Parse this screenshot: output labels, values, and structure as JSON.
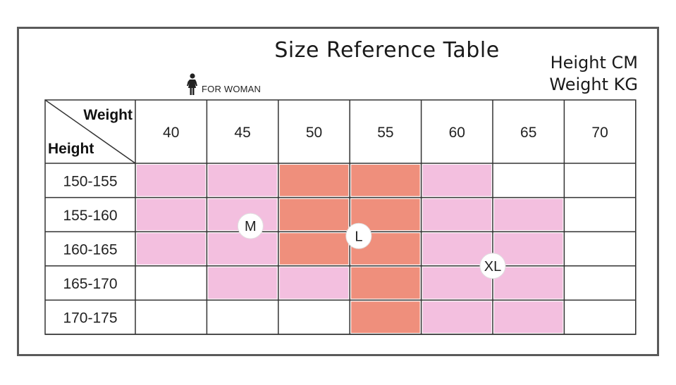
{
  "header": {
    "title": "Size Reference Table",
    "units_height": "Height CM",
    "units_weight": "Weight KG",
    "subtitle": "FOR WOMAN",
    "subtitle_icon": "woman-icon"
  },
  "chart_data": {
    "type": "table",
    "corner_top": "Weight",
    "corner_bottom": "Height",
    "columns": [
      "40",
      "45",
      "50",
      "55",
      "60",
      "65",
      "70"
    ],
    "rows": [
      "150-155",
      "155-160",
      "160-165",
      "165-170",
      "170-175"
    ],
    "cells": [
      [
        "M",
        "M",
        "L",
        "L",
        "M",
        "",
        ""
      ],
      [
        "M",
        "M",
        "L",
        "L",
        "XL",
        "XL",
        ""
      ],
      [
        "M",
        "M",
        "L",
        "L",
        "XL",
        "XL",
        ""
      ],
      [
        "",
        "M",
        "M",
        "L",
        "XL",
        "XL",
        ""
      ],
      [
        "",
        "",
        "",
        "L",
        "XL",
        "XL",
        ""
      ]
    ],
    "size_labels": [
      "M",
      "L",
      "XL"
    ],
    "colors": {
      "M": "#f3bfdf",
      "L": "#ef8f7c",
      "XL": "#f3bfdf",
      "empty": "#ffffff",
      "grid": "#333333"
    }
  }
}
